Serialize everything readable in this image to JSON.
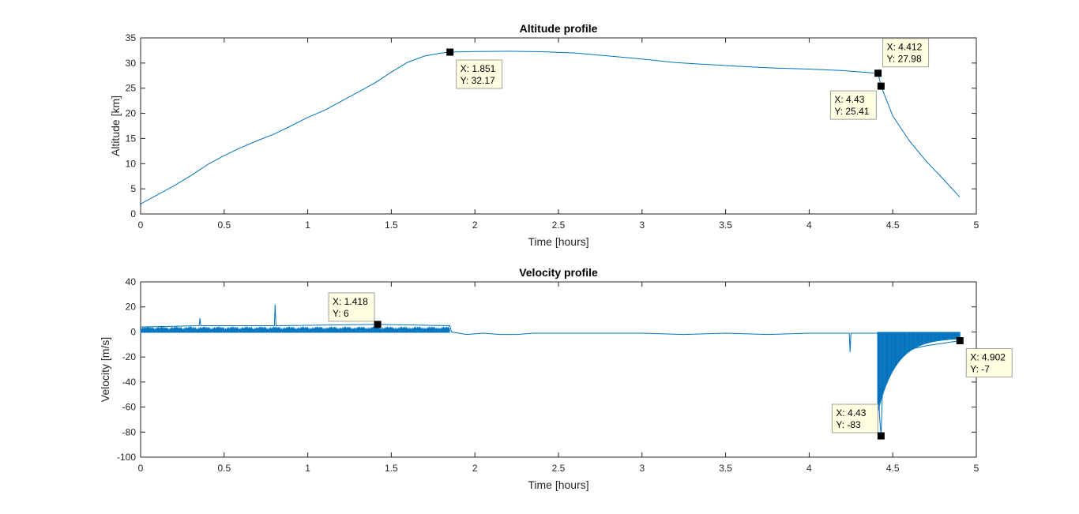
{
  "colors": {
    "line": "#0072BD",
    "axis": "#262626",
    "tip_bg": "#FFFFE1",
    "tip_border": "#A0A0A0",
    "marker": "#000000"
  },
  "chart_data": [
    {
      "type": "line",
      "title": "Altitude profile",
      "xlabel": "Time [hours]",
      "ylabel": "Altitude [km]",
      "xlim": [
        0,
        5
      ],
      "ylim": [
        0,
        35
      ],
      "xticks": [
        0,
        0.5,
        1,
        1.5,
        2,
        2.5,
        3,
        3.5,
        4,
        4.5,
        5
      ],
      "xticklabels": [
        "0",
        "0.5",
        "1",
        "1.5",
        "2",
        "2.5",
        "3",
        "3.5",
        "4",
        "4.5",
        "5"
      ],
      "yticks": [
        0,
        5,
        10,
        15,
        20,
        25,
        30,
        35
      ],
      "yticklabels": [
        "0",
        "5",
        "10",
        "15",
        "20",
        "25",
        "30",
        "35"
      ],
      "grid": false,
      "series": [
        {
          "x": [
            0,
            0.1,
            0.2,
            0.3,
            0.4,
            0.5,
            0.6,
            0.7,
            0.8,
            0.9,
            1.0,
            1.1,
            1.2,
            1.3,
            1.4,
            1.5,
            1.6,
            1.7,
            1.8,
            1.851,
            1.9,
            2.0,
            2.2,
            2.4,
            2.6,
            2.8,
            3.0,
            3.2,
            3.4,
            3.6,
            3.8,
            4.0,
            4.2,
            4.4,
            4.412,
            4.43,
            4.5,
            4.6,
            4.7,
            4.8,
            4.9
          ],
          "y": [
            2.0,
            3.8,
            5.6,
            7.6,
            9.8,
            11.6,
            13.2,
            14.6,
            15.9,
            17.5,
            19.2,
            20.6,
            22.4,
            24.2,
            26.0,
            28.2,
            30.2,
            31.4,
            32.0,
            32.17,
            32.2,
            32.3,
            32.35,
            32.25,
            32.0,
            31.4,
            30.8,
            30.1,
            29.7,
            29.3,
            29.0,
            28.8,
            28.5,
            28.0,
            27.98,
            25.41,
            19.5,
            14.5,
            10.5,
            7.0,
            3.4
          ]
        }
      ],
      "datatips": [
        {
          "x": 1.851,
          "y": 32.17,
          "line1": "X: 1.851",
          "line2": "Y: 32.17",
          "placement": "below-right"
        },
        {
          "x": 4.412,
          "y": 27.98,
          "line1": "X: 4.412",
          "line2": "Y: 27.98",
          "placement": "above-right"
        },
        {
          "x": 4.43,
          "y": 25.41,
          "line1": "X: 4.43",
          "line2": "Y: 25.41",
          "placement": "below-left"
        }
      ]
    },
    {
      "type": "line",
      "title": "Velocity profile",
      "xlabel": "Time [hours]",
      "ylabel": "Velocity [m/s]",
      "xlim": [
        0,
        5
      ],
      "ylim": [
        -100,
        40
      ],
      "xticks": [
        0,
        0.5,
        1,
        1.5,
        2,
        2.5,
        3,
        3.5,
        4,
        4.5,
        5
      ],
      "xticklabels": [
        "0",
        "0.5",
        "1",
        "1.5",
        "2",
        "2.5",
        "3",
        "3.5",
        "4",
        "4.5",
        "5"
      ],
      "yticks": [
        -100,
        -80,
        -60,
        -40,
        -20,
        0,
        20,
        40
      ],
      "yticklabels": [
        "-100",
        "-80",
        "-60",
        "-40",
        "-20",
        "0",
        "20",
        "40"
      ],
      "grid": false,
      "series": [
        {
          "x": [
            0,
            0.35,
            0.355,
            0.36,
            0.8,
            0.805,
            0.81,
            1.418,
            1.85,
            1.86,
            1.95,
            2.05,
            2.15,
            2.25,
            2.35,
            2.45,
            2.55,
            2.65,
            2.75,
            3.0,
            3.25,
            3.5,
            3.75,
            4.0,
            4.24,
            4.245,
            4.25,
            4.41,
            4.42,
            4.43,
            4.44,
            4.5,
            4.55,
            4.6,
            4.7,
            4.8,
            4.902
          ],
          "y": [
            4,
            5,
            11,
            5,
            5,
            22,
            5,
            6,
            5,
            0,
            -2,
            -1,
            -2,
            -2,
            -1,
            -1,
            -1,
            -1,
            -1,
            -1,
            -2,
            -1,
            -2,
            -1,
            -1,
            -16,
            -1,
            -1,
            -66,
            -83,
            -40,
            -30,
            -20,
            -14,
            -11,
            -9,
            -7
          ]
        }
      ],
      "datatips": [
        {
          "x": 1.418,
          "y": 6,
          "line1": "X: 1.418",
          "line2": "Y: 6",
          "placement": "above-left"
        },
        {
          "x": 4.43,
          "y": -83,
          "line1": "X: 4.43",
          "line2": "Y: -83",
          "placement": "above-left"
        },
        {
          "x": 4.902,
          "y": -7,
          "line1": "X: 4.902",
          "line2": "Y: -7",
          "placement": "below-right"
        }
      ]
    }
  ]
}
